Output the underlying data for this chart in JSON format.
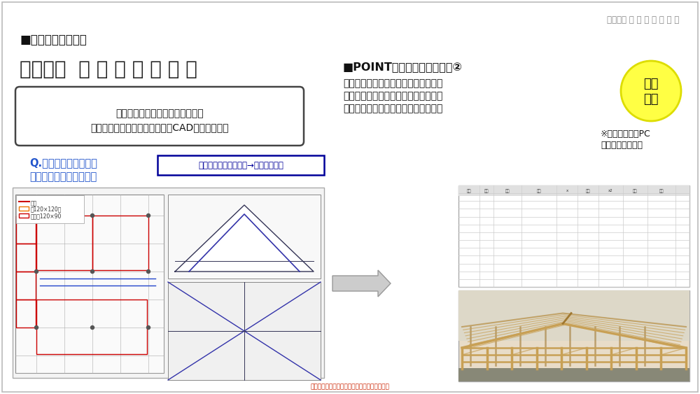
{
  "bg_color": "#ffffff",
  "title_top_right": "株式会社 木 構 造 デ ザ イ ン",
  "title_top_right_color": "#888888",
  "section_title": "■課題解決のご提案",
  "company_name": "株式会社  木 構 造 デ ザ イ ン",
  "company_name_color": "#222222",
  "box_text_line1": "大規模木造専門の構造設計事務所",
  "box_text_line2": "構造設計と連動したプレカットCADデータの提供",
  "question_line1": "Q.木造でどれくらいの",
  "question_line2": "金額になりそうですか？",
  "question_color": "#2255cc",
  "button_text": "設計事務所・建設会社→概算見積相談",
  "button_text_color": "#000099",
  "button_border_color": "#000099",
  "point_title": "■POINT　サポートイメージ②",
  "point_body_line1": "構造計画に沿ったプレカットデータを",
  "point_body_line2": "作成し、構造材の積算明細、金物明細",
  "point_body_line3": "が概算で算定できる資料を作成します",
  "circle_text_line1": "概算",
  "circle_text_line2": "算定",
  "circle_color": "#ffff44",
  "circle_border_color": "#dddd00",
  "note_line1": "※ネットワークPC",
  "note_line2": "　会員の場合無償",
  "footer_text": "作成者の許可なく無断転載することを禁じます",
  "footer_color": "#cc2200"
}
